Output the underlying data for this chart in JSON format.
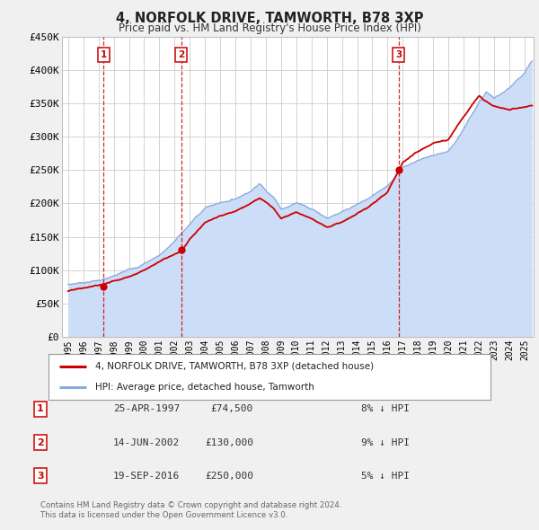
{
  "title": "4, NORFOLK DRIVE, TAMWORTH, B78 3XP",
  "subtitle": "Price paid vs. HM Land Registry's House Price Index (HPI)",
  "background_color": "#f0f0f0",
  "plot_bg_color": "#ffffff",
  "grid_color": "#cccccc",
  "ylim": [
    0,
    450000
  ],
  "yticks": [
    0,
    50000,
    100000,
    150000,
    200000,
    250000,
    300000,
    350000,
    400000,
    450000
  ],
  "ytick_labels": [
    "£0",
    "£50K",
    "£100K",
    "£150K",
    "£200K",
    "£250K",
    "£300K",
    "£350K",
    "£400K",
    "£450K"
  ],
  "xlim_start": 1994.6,
  "xlim_end": 2025.6,
  "xtick_years": [
    1995,
    1996,
    1997,
    1998,
    1999,
    2000,
    2001,
    2002,
    2003,
    2004,
    2005,
    2006,
    2007,
    2008,
    2009,
    2010,
    2011,
    2012,
    2013,
    2014,
    2015,
    2016,
    2017,
    2018,
    2019,
    2020,
    2021,
    2022,
    2023,
    2024,
    2025
  ],
  "sale_color": "#cc0000",
  "hpi_line_color": "#88aadd",
  "hpi_fill_color": "#ccddf7",
  "sale_dot_color": "#cc0000",
  "vline_color": "#cc0000",
  "purchases": [
    {
      "num": 1,
      "date_x": 1997.32,
      "price": 74500,
      "label": "25-APR-1997",
      "price_str": "£74,500",
      "hpi_pct": "8% ↓ HPI"
    },
    {
      "num": 2,
      "date_x": 2002.45,
      "price": 130000,
      "label": "14-JUN-2002",
      "price_str": "£130,000",
      "hpi_pct": "9% ↓ HPI"
    },
    {
      "num": 3,
      "date_x": 2016.72,
      "price": 250000,
      "label": "19-SEP-2016",
      "price_str": "£250,000",
      "hpi_pct": "5% ↓ HPI"
    }
  ],
  "legend_sale_label": "4, NORFOLK DRIVE, TAMWORTH, B78 3XP (detached house)",
  "legend_hpi_label": "HPI: Average price, detached house, Tamworth",
  "footer": "Contains HM Land Registry data © Crown copyright and database right 2024.\nThis data is licensed under the Open Government Licence v3.0."
}
